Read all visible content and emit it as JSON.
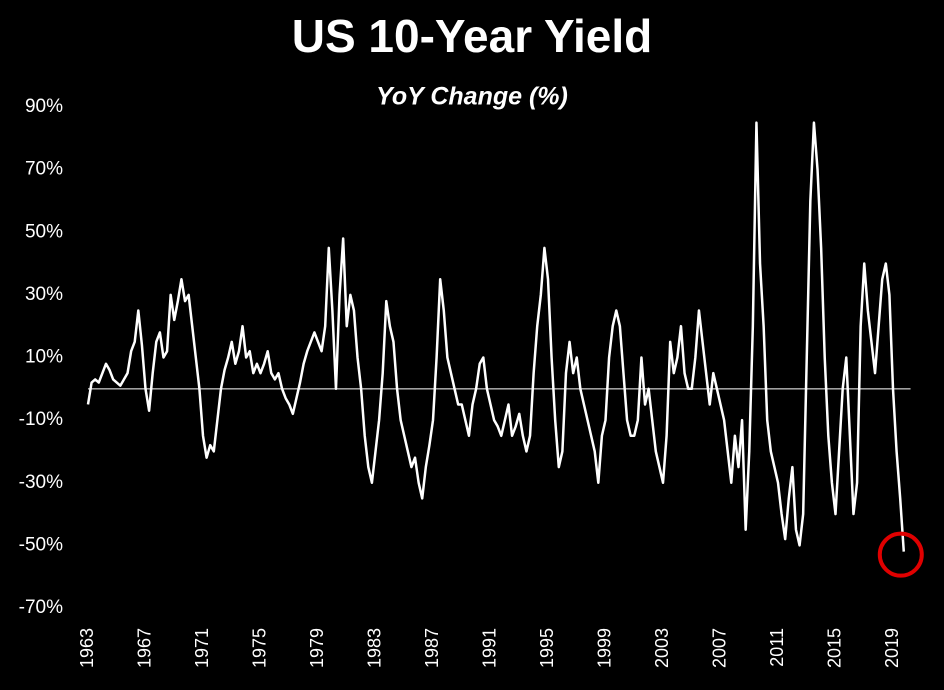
{
  "chart_data": {
    "type": "line",
    "title": "US 10-Year Yield",
    "subtitle": "YoY Change (%)",
    "color": "#ffffff",
    "x": [
      1963,
      1963.25,
      1963.5,
      1963.75,
      1964,
      1964.25,
      1964.5,
      1964.75,
      1965,
      1965.25,
      1965.5,
      1965.75,
      1966,
      1966.25,
      1966.5,
      1966.75,
      1967,
      1967.25,
      1967.5,
      1967.75,
      1968,
      1968.25,
      1968.5,
      1968.75,
      1969,
      1969.25,
      1969.5,
      1969.75,
      1970,
      1970.25,
      1970.5,
      1970.75,
      1971,
      1971.25,
      1971.5,
      1971.75,
      1972,
      1972.25,
      1972.5,
      1972.75,
      1973,
      1973.25,
      1973.5,
      1973.75,
      1974,
      1974.25,
      1974.5,
      1974.75,
      1975,
      1975.25,
      1975.5,
      1975.75,
      1976,
      1976.25,
      1976.5,
      1976.75,
      1977,
      1977.25,
      1977.5,
      1977.75,
      1978,
      1978.25,
      1978.5,
      1978.75,
      1979,
      1979.25,
      1979.5,
      1979.75,
      1980,
      1980.25,
      1980.5,
      1980.75,
      1981,
      1981.25,
      1981.5,
      1981.75,
      1982,
      1982.25,
      1982.5,
      1982.75,
      1983,
      1983.25,
      1983.5,
      1983.75,
      1984,
      1984.25,
      1984.5,
      1984.75,
      1985,
      1985.25,
      1985.5,
      1985.75,
      1986,
      1986.25,
      1986.5,
      1986.75,
      1987,
      1987.25,
      1987.5,
      1987.75,
      1988,
      1988.25,
      1988.5,
      1988.75,
      1989,
      1989.25,
      1989.5,
      1989.75,
      1990,
      1990.25,
      1990.5,
      1990.75,
      1991,
      1991.25,
      1991.5,
      1991.75,
      1992,
      1992.25,
      1992.5,
      1992.75,
      1993,
      1993.25,
      1993.5,
      1993.75,
      1994,
      1994.25,
      1994.5,
      1994.75,
      1995,
      1995.25,
      1995.5,
      1995.75,
      1996,
      1996.25,
      1996.5,
      1996.75,
      1997,
      1997.25,
      1997.5,
      1997.75,
      1998,
      1998.25,
      1998.5,
      1998.75,
      1999,
      1999.25,
      1999.5,
      1999.75,
      2000,
      2000.25,
      2000.5,
      2000.75,
      2001,
      2001.25,
      2001.5,
      2001.75,
      2002,
      2002.25,
      2002.5,
      2002.75,
      2003,
      2003.25,
      2003.5,
      2003.75,
      2004,
      2004.25,
      2004.5,
      2004.75,
      2005,
      2005.25,
      2005.5,
      2005.75,
      2006,
      2006.25,
      2006.5,
      2006.75,
      2007,
      2007.25,
      2007.5,
      2007.75,
      2008,
      2008.25,
      2008.5,
      2008.75,
      2009,
      2009.25,
      2009.5,
      2009.75,
      2010,
      2010.25,
      2010.5,
      2010.75,
      2011,
      2011.25,
      2011.5,
      2011.75,
      2012,
      2012.25,
      2012.5,
      2012.75,
      2013,
      2013.25,
      2013.5,
      2013.75,
      2014,
      2014.25,
      2014.5,
      2014.75,
      2015,
      2015.25,
      2015.5,
      2015.75,
      2016,
      2016.25,
      2016.5,
      2016.75,
      2017,
      2017.25,
      2017.5,
      2017.75,
      2018,
      2018.25,
      2018.5,
      2018.75,
      2019,
      2019.25,
      2019.5,
      2019.75
    ],
    "values": [
      -5,
      2,
      3,
      2,
      5,
      8,
      6,
      3,
      2,
      1,
      3,
      5,
      12,
      15,
      25,
      14,
      0,
      -7,
      5,
      15,
      18,
      10,
      12,
      30,
      22,
      28,
      35,
      28,
      30,
      20,
      10,
      0,
      -15,
      -22,
      -18,
      -20,
      -10,
      0,
      6,
      10,
      15,
      8,
      12,
      20,
      10,
      12,
      5,
      8,
      5,
      8,
      12,
      5,
      3,
      5,
      0,
      -3,
      -5,
      -8,
      -3,
      2,
      8,
      12,
      15,
      18,
      15,
      12,
      20,
      45,
      25,
      0,
      30,
      48,
      20,
      30,
      25,
      10,
      0,
      -15,
      -25,
      -30,
      -20,
      -10,
      5,
      28,
      20,
      15,
      0,
      -10,
      -15,
      -20,
      -25,
      -22,
      -30,
      -35,
      -25,
      -18,
      -10,
      10,
      35,
      25,
      10,
      5,
      0,
      -5,
      -5,
      -10,
      -15,
      -5,
      0,
      8,
      10,
      0,
      -5,
      -10,
      -12,
      -15,
      -10,
      -5,
      -15,
      -12,
      -8,
      -15,
      -20,
      -15,
      5,
      20,
      30,
      45,
      35,
      10,
      -10,
      -25,
      -20,
      5,
      15,
      5,
      10,
      0,
      -5,
      -10,
      -15,
      -20,
      -30,
      -15,
      -10,
      10,
      20,
      25,
      20,
      5,
      -10,
      -15,
      -15,
      -10,
      10,
      -5,
      0,
      -10,
      -20,
      -25,
      -30,
      -15,
      15,
      5,
      10,
      20,
      5,
      0,
      0,
      10,
      25,
      15,
      5,
      -5,
      5,
      0,
      -5,
      -10,
      -20,
      -30,
      -15,
      -25,
      -10,
      -45,
      -20,
      20,
      85,
      40,
      20,
      -10,
      -20,
      -25,
      -30,
      -40,
      -48,
      -35,
      -25,
      -45,
      -50,
      -40,
      10,
      60,
      85,
      70,
      45,
      10,
      -15,
      -30,
      -40,
      -20,
      0,
      10,
      -15,
      -40,
      -30,
      20,
      40,
      25,
      15,
      5,
      20,
      35,
      40,
      30,
      0,
      -20,
      -35,
      -52
    ],
    "xlim": [
      1962.9,
      2020.5
    ],
    "xticks": [
      1963,
      1967,
      1971,
      1975,
      1979,
      1983,
      1987,
      1991,
      1995,
      1999,
      2003,
      2007,
      2011,
      2015,
      2019
    ],
    "ylim": [
      -70,
      90
    ],
    "yticks": [
      {
        "value": -70,
        "label": "-70%"
      },
      {
        "value": -50,
        "label": "-50%"
      },
      {
        "value": -30,
        "label": "-30%"
      },
      {
        "value": -10,
        "label": "-10%"
      },
      {
        "value": 10,
        "label": "10%"
      },
      {
        "value": 30,
        "label": "30%"
      },
      {
        "value": 50,
        "label": "50%"
      },
      {
        "value": 70,
        "label": "70%"
      },
      {
        "value": 90,
        "label": "90%"
      }
    ],
    "grid": false
  }
}
